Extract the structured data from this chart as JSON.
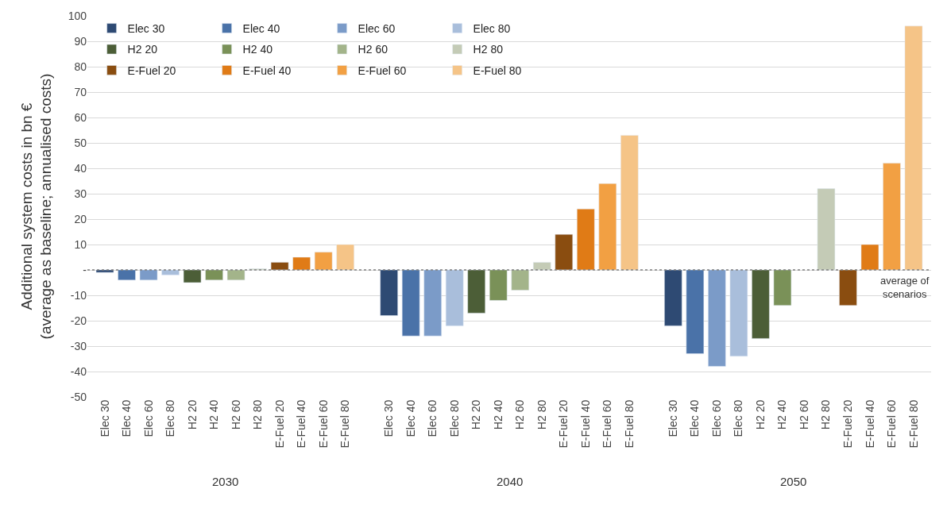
{
  "chart_data": {
    "type": "bar",
    "categories": [
      "2030",
      "2040",
      "2050"
    ],
    "ylabel": "Additional system costs in bn €\n(average as baseline; annualised costs)",
    "ylim": [
      -50,
      100
    ],
    "yticks": [
      -50,
      -40,
      -30,
      -20,
      -10,
      {
        "value": 0,
        "label": "-"
      },
      10,
      20,
      30,
      40,
      50,
      60,
      70,
      80,
      90,
      100
    ],
    "grid": "y",
    "legend": "top left",
    "ref_lines": [
      {
        "axis": "y",
        "value": 0,
        "label": "average of scenarios",
        "line_style": "dotted",
        "color": "#7f7f7f"
      }
    ],
    "series": [
      {
        "name": "Elec 30",
        "color": "#2e4a73",
        "values": [
          -1,
          -18,
          -22
        ]
      },
      {
        "name": "Elec 40",
        "color": "#4a72a8",
        "values": [
          -4,
          -26,
          -33
        ]
      },
      {
        "name": "Elec 60",
        "color": "#7b9bc8",
        "values": [
          -4,
          -26,
          -38
        ]
      },
      {
        "name": "Elec 80",
        "color": "#a9bedb",
        "values": [
          -2,
          -22,
          -34
        ]
      },
      {
        "name": "H2 20",
        "color": "#4c5e37",
        "values": [
          -5,
          -17,
          -27
        ]
      },
      {
        "name": "H2 40",
        "color": "#7a9158",
        "values": [
          -4,
          -12,
          -14
        ]
      },
      {
        "name": "H2 60",
        "color": "#a3b48a",
        "values": [
          -4,
          -8,
          null
        ]
      },
      {
        "name": "H2 80",
        "color": "#c4cbb6",
        "values": [
          0.5,
          3,
          32
        ]
      },
      {
        "name": "E-Fuel 20",
        "color": "#8a4d10",
        "values": [
          3,
          14,
          -14
        ]
      },
      {
        "name": "E-Fuel 40",
        "color": "#e07b16",
        "values": [
          5,
          24,
          10
        ]
      },
      {
        "name": "E-Fuel 60",
        "color": "#f2a043",
        "values": [
          7,
          34,
          42
        ]
      },
      {
        "name": "E-Fuel 80",
        "color": "#f5c487",
        "values": [
          10,
          53,
          96
        ]
      }
    ]
  }
}
